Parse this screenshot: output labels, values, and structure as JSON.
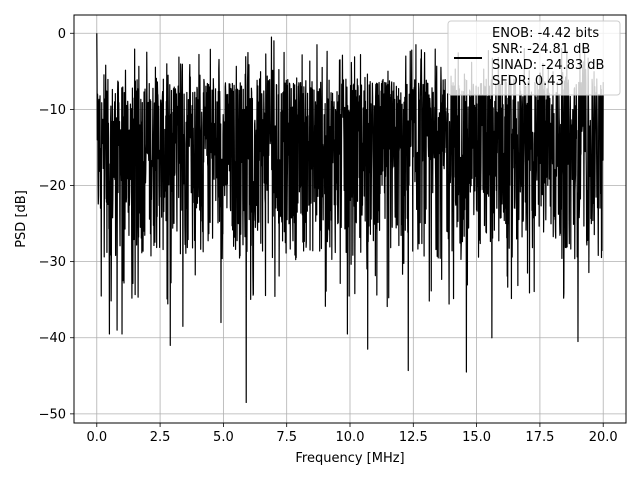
{
  "chart_data": {
    "type": "line",
    "title": "",
    "xlabel": "Frequency [MHz]",
    "ylabel": "PSD [dB]",
    "xlim": [
      -0.9,
      20.9
    ],
    "ylim": [
      -51.2,
      2.4
    ],
    "xticks": [
      0.0,
      2.5,
      5.0,
      7.5,
      10.0,
      12.5,
      15.0,
      17.5,
      20.0
    ],
    "xtick_labels": [
      "0.0",
      "2.5",
      "5.0",
      "7.5",
      "10.0",
      "12.5",
      "15.0",
      "17.5",
      "20.0"
    ],
    "yticks": [
      0,
      -10,
      -20,
      -30,
      -40,
      -50
    ],
    "ytick_labels": [
      "0",
      "−10",
      "−20",
      "−30",
      "−40",
      "−50"
    ],
    "grid": true,
    "legend": {
      "location": "top-right",
      "entries": [
        "ENOB: -4.42 bits",
        "SNR: -24.81 dB",
        "SINAD: -24.83 dB",
        "SFDR: 0.43"
      ]
    },
    "series": [
      {
        "color": "#000000",
        "x_range": [
          0.0,
          20.0
        ],
        "n_points": 2048,
        "envelope_top_db": -6,
        "envelope_bottom_db": -30,
        "dc_peak_db": 0,
        "notable_minima": [
          {
            "x": 0.5,
            "y": -39.5
          },
          {
            "x": 0.8,
            "y": -39.0
          },
          {
            "x": 1.0,
            "y": -39.5
          },
          {
            "x": 2.9,
            "y": -41.0
          },
          {
            "x": 3.4,
            "y": -38.5
          },
          {
            "x": 4.9,
            "y": -38.0
          },
          {
            "x": 5.9,
            "y": -48.5
          },
          {
            "x": 9.9,
            "y": -39.5
          },
          {
            "x": 10.7,
            "y": -41.5
          },
          {
            "x": 12.3,
            "y": -44.3
          },
          {
            "x": 14.6,
            "y": -44.5
          },
          {
            "x": 15.6,
            "y": -40.0
          },
          {
            "x": 19.0,
            "y": -40.5
          }
        ],
        "notable_maxima": [
          {
            "x": 0.0,
            "y": 0.0
          },
          {
            "x": 6.9,
            "y": -0.5
          },
          {
            "x": 7.0,
            "y": -1.0
          },
          {
            "x": 8.7,
            "y": -1.5
          },
          {
            "x": 9.6,
            "y": -3.5
          },
          {
            "x": 12.2,
            "y": -3.0
          },
          {
            "x": 12.6,
            "y": -1.5
          }
        ]
      }
    ]
  }
}
